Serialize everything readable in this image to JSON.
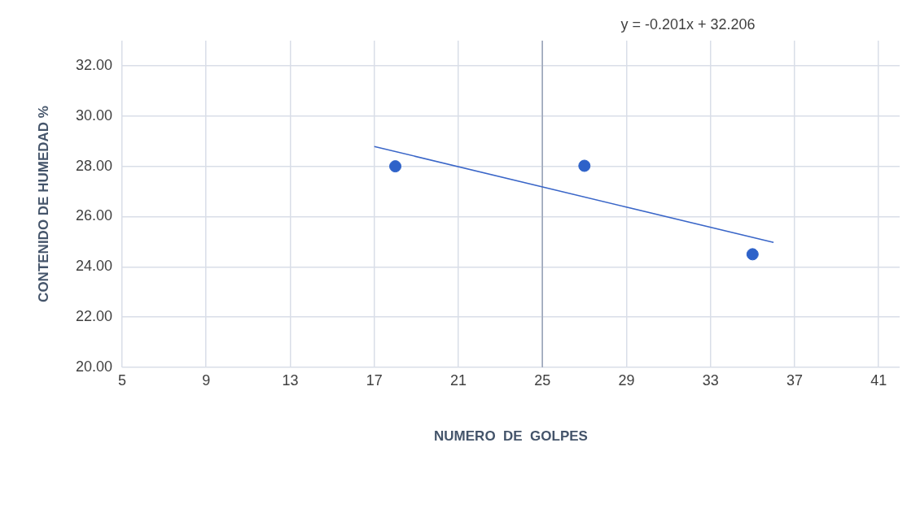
{
  "chart_data": {
    "type": "scatter",
    "xlabel": "NUMERO  DE  GOLPES",
    "ylabel": "CONTENIDO DE HUMEDAD %",
    "annotations": [
      "y = -0.201x + 32.206"
    ],
    "xlim": [
      5,
      42
    ],
    "xticks": [
      5,
      9,
      13,
      17,
      21,
      25,
      29,
      33,
      37,
      41
    ],
    "ylim": [
      20,
      33
    ],
    "yticks": [
      {
        "value": 20,
        "label": "20.00"
      },
      {
        "value": 22,
        "label": "22.00"
      },
      {
        "value": 24,
        "label": "24.00"
      },
      {
        "value": 26,
        "label": "26.00"
      },
      {
        "value": 28,
        "label": "28.00"
      },
      {
        "value": 30,
        "label": "30.00"
      },
      {
        "value": 32,
        "label": "32.00"
      }
    ],
    "grid": true,
    "ref_lines": [
      {
        "axis": "x",
        "value": 25,
        "color": "#9aa4b8"
      }
    ],
    "series": [
      {
        "marker": "circle",
        "color": "#2e62c9",
        "x": [
          18,
          27,
          35
        ],
        "values": [
          28.0,
          28.02,
          24.5
        ]
      },
      {
        "type": "line",
        "marker": "none",
        "color": "#3a66c8",
        "x": [
          17,
          36
        ],
        "values": [
          28.79,
          24.97
        ]
      }
    ]
  }
}
